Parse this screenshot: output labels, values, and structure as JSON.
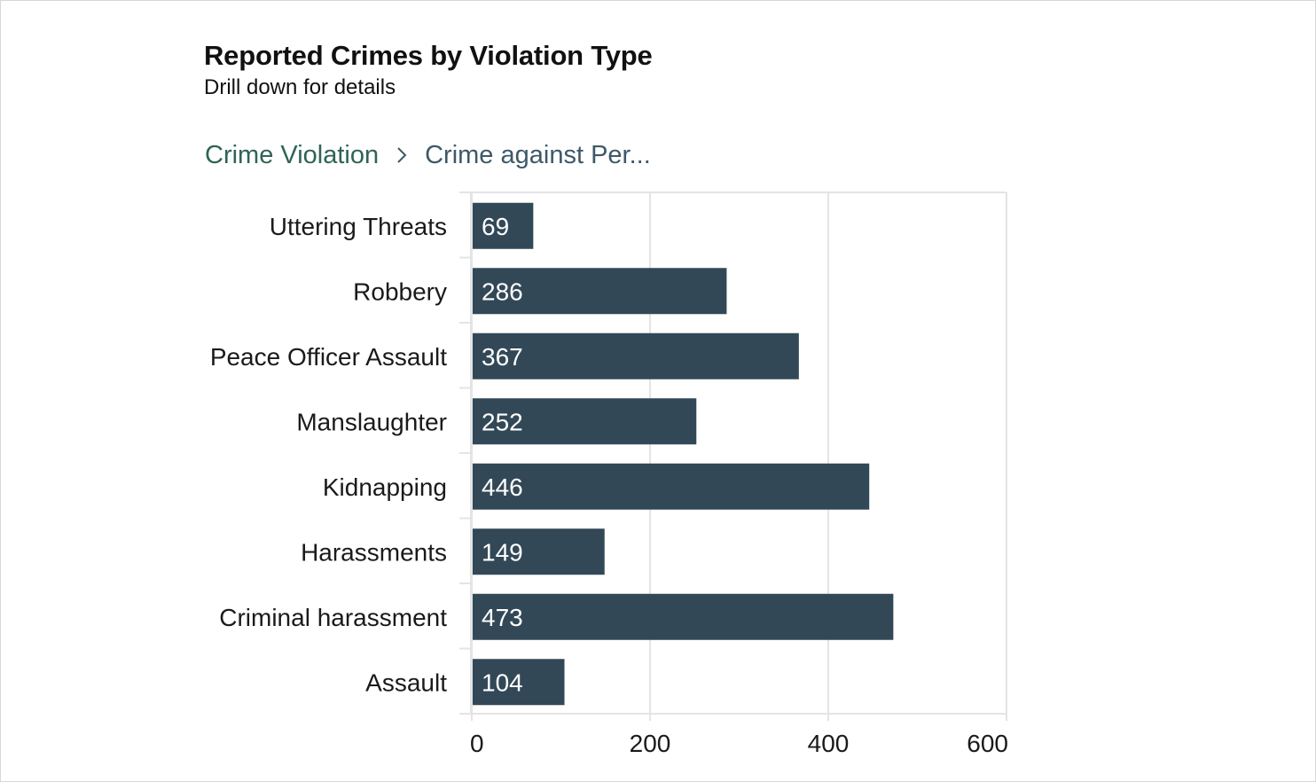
{
  "header": {
    "title": "Reported Crimes by Violation Type",
    "subtitle": "Drill down for details"
  },
  "breadcrumb": {
    "root": "Crime Violation",
    "current": "Crime against Per..."
  },
  "colors": {
    "bar": "#334857",
    "grid": "#e4e4e4",
    "crumb_link": "#2e6455"
  },
  "chart_data": {
    "type": "bar",
    "orientation": "horizontal",
    "title": "Reported Crimes by Violation Type",
    "subtitle": "Drill down for details",
    "categories": [
      "Uttering Threats",
      "Robbery",
      "Peace Officer Assault",
      "Manslaughter",
      "Kidnapping",
      "Harassments",
      "Criminal harassment",
      "Assault"
    ],
    "values": [
      69,
      286,
      367,
      252,
      446,
      149,
      473,
      104
    ],
    "xlim": [
      0,
      600
    ],
    "xticks": [
      0,
      200,
      400,
      600
    ],
    "data_labels": true,
    "grid": true,
    "legend": "none"
  }
}
